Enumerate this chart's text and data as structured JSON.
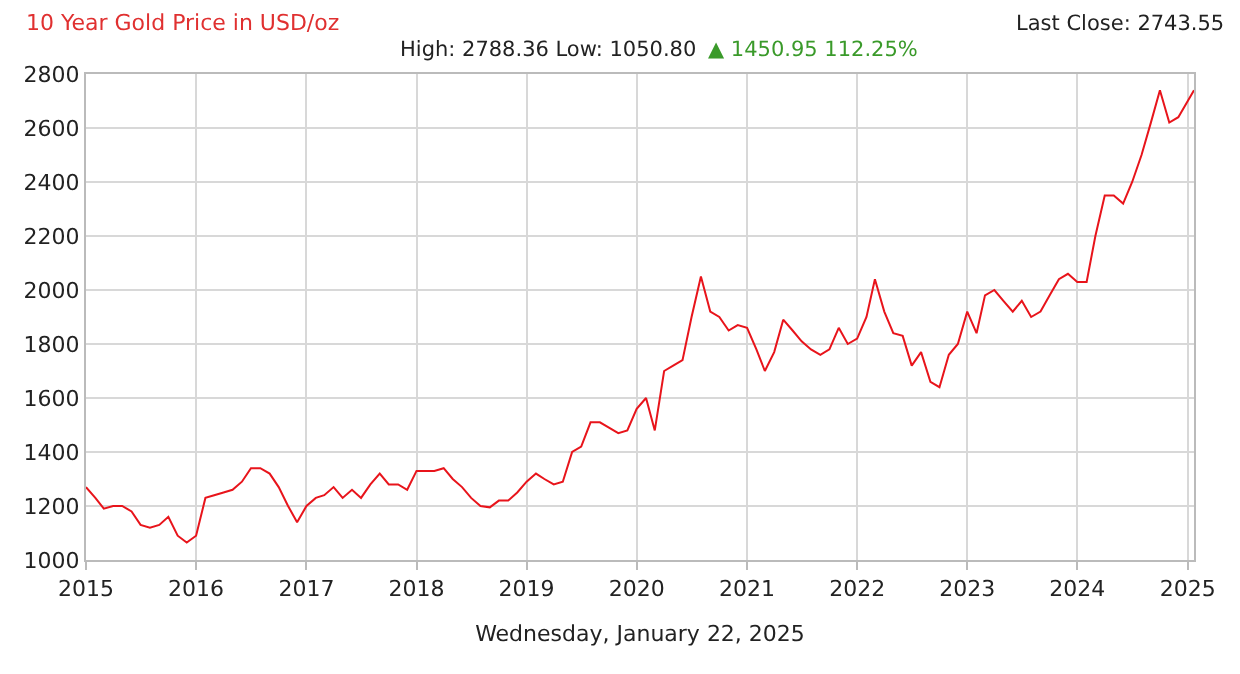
{
  "chart_data": {
    "type": "line",
    "title": "10 Year Gold Price in USD/oz",
    "subtitle": "High: 2788.36 Low: 1050.80",
    "xlabel": "Wednesday, January 22, 2025",
    "annotations": [
      "▲ 1450.95 112.25%",
      "Last Close: 2743.55"
    ],
    "x": [
      "2015-01",
      "2015-02",
      "2015-03",
      "2015-04",
      "2015-05",
      "2015-06",
      "2015-07",
      "2015-08",
      "2015-09",
      "2015-10",
      "2015-11",
      "2015-12",
      "2016-01",
      "2016-02",
      "2016-03",
      "2016-04",
      "2016-05",
      "2016-06",
      "2016-07",
      "2016-08",
      "2016-09",
      "2016-10",
      "2016-11",
      "2016-12",
      "2017-01",
      "2017-02",
      "2017-03",
      "2017-04",
      "2017-05",
      "2017-06",
      "2017-07",
      "2017-08",
      "2017-09",
      "2017-10",
      "2017-11",
      "2017-12",
      "2018-01",
      "2018-02",
      "2018-03",
      "2018-04",
      "2018-05",
      "2018-06",
      "2018-07",
      "2018-08",
      "2018-09",
      "2018-10",
      "2018-11",
      "2018-12",
      "2019-01",
      "2019-02",
      "2019-03",
      "2019-04",
      "2019-05",
      "2019-06",
      "2019-07",
      "2019-08",
      "2019-09",
      "2019-10",
      "2019-11",
      "2019-12",
      "2020-01",
      "2020-02",
      "2020-03",
      "2020-04",
      "2020-05",
      "2020-06",
      "2020-07",
      "2020-08",
      "2020-09",
      "2020-10",
      "2020-11",
      "2020-12",
      "2021-01",
      "2021-02",
      "2021-03",
      "2021-04",
      "2021-05",
      "2021-06",
      "2021-07",
      "2021-08",
      "2021-09",
      "2021-10",
      "2021-11",
      "2021-12",
      "2022-01",
      "2022-02",
      "2022-03",
      "2022-04",
      "2022-05",
      "2022-06",
      "2022-07",
      "2022-08",
      "2022-09",
      "2022-10",
      "2022-11",
      "2022-12",
      "2023-01",
      "2023-02",
      "2023-03",
      "2023-04",
      "2023-05",
      "2023-06",
      "2023-07",
      "2023-08",
      "2023-09",
      "2023-10",
      "2023-11",
      "2023-12",
      "2024-01",
      "2024-02",
      "2024-03",
      "2024-04",
      "2024-05",
      "2024-06",
      "2024-07",
      "2024-08",
      "2024-09",
      "2024-10",
      "2024-11",
      "2024-12",
      "2025-01-22"
    ],
    "series": [
      {
        "color": "#e8141b",
        "values": [
          1270,
          1230,
          1190,
          1200,
          1200,
          1180,
          1130,
          1120,
          1130,
          1160,
          1090,
          1065,
          1090,
          1230,
          1240,
          1250,
          1260,
          1290,
          1340,
          1340,
          1320,
          1270,
          1200,
          1140,
          1200,
          1230,
          1240,
          1270,
          1230,
          1260,
          1230,
          1280,
          1320,
          1280,
          1280,
          1260,
          1330,
          1330,
          1330,
          1340,
          1300,
          1270,
          1230,
          1200,
          1195,
          1220,
          1220,
          1250,
          1290,
          1320,
          1300,
          1280,
          1290,
          1400,
          1420,
          1510,
          1510,
          1490,
          1470,
          1480,
          1560,
          1600,
          1480,
          1700,
          1720,
          1740,
          1900,
          2050,
          1920,
          1900,
          1850,
          1870,
          1860,
          1780,
          1700,
          1770,
          1890,
          1850,
          1810,
          1780,
          1760,
          1780,
          1860,
          1800,
          1820,
          1900,
          2040,
          1920,
          1840,
          1830,
          1720,
          1770,
          1660,
          1640,
          1760,
          1800,
          1920,
          1840,
          1980,
          2000,
          1960,
          1920,
          1960,
          1900,
          1920,
          1980,
          2040,
          2060,
          2030,
          2030,
          2200,
          2350,
          2350,
          2320,
          2400,
          2500,
          2620,
          2740,
          2620,
          2640,
          2740
        ]
      }
    ],
    "xlim": [
      "2015-01-01",
      "2025-01-22"
    ],
    "xticks": [
      "2015",
      "2016",
      "2017",
      "2018",
      "2019",
      "2020",
      "2021",
      "2022",
      "2023",
      "2024",
      "2025"
    ],
    "ylim": [
      1000,
      2800
    ],
    "yticks": [
      1000,
      1200,
      1400,
      1600,
      1800,
      2000,
      2200,
      2400,
      2600,
      2800
    ],
    "grid": true,
    "marker": "none",
    "line_style": "solid"
  }
}
